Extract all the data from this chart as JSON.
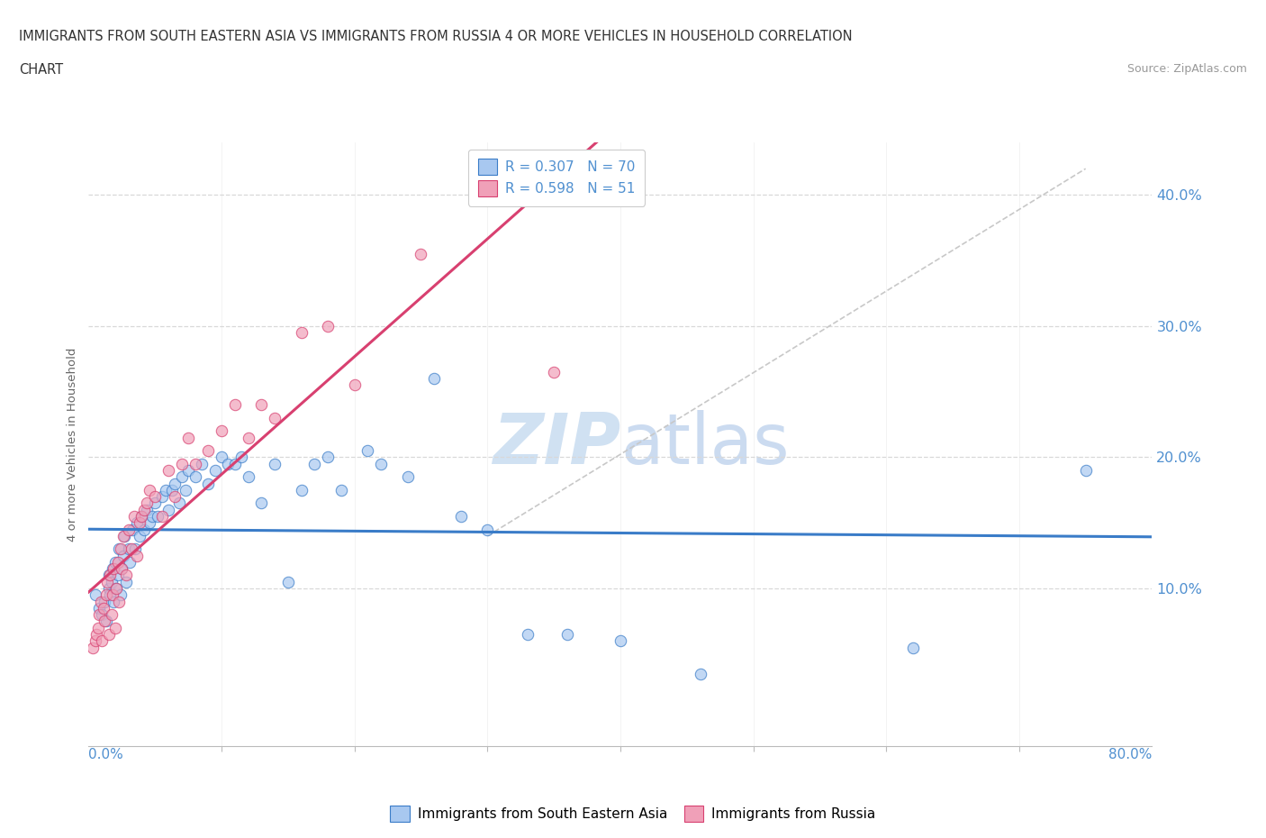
{
  "title_line1": "IMMIGRANTS FROM SOUTH EASTERN ASIA VS IMMIGRANTS FROM RUSSIA 4 OR MORE VEHICLES IN HOUSEHOLD CORRELATION",
  "title_line2": "CHART",
  "source_text": "Source: ZipAtlas.com",
  "ylabel": "4 or more Vehicles in Household",
  "yticks": [
    "10.0%",
    "20.0%",
    "30.0%",
    "40.0%"
  ],
  "ytick_vals": [
    0.1,
    0.2,
    0.3,
    0.4
  ],
  "xlim": [
    0.0,
    0.8
  ],
  "ylim": [
    -0.02,
    0.44
  ],
  "watermark_zip": "ZIP",
  "watermark_atlas": "atlas",
  "legend_blue_label": "R = 0.307   N = 70",
  "legend_pink_label": "R = 0.598   N = 51",
  "blue_color": "#A8C8F0",
  "pink_color": "#F0A0B8",
  "blue_line_color": "#3A7CC8",
  "pink_line_color": "#D84070",
  "diag_line_color": "#C8C8C8",
  "grid_color": "#D8D8D8",
  "label_color": "#5090D0",
  "blue_scatter_x": [
    0.005,
    0.008,
    0.01,
    0.012,
    0.013,
    0.015,
    0.015,
    0.016,
    0.017,
    0.018,
    0.019,
    0.02,
    0.021,
    0.022,
    0.023,
    0.024,
    0.025,
    0.026,
    0.027,
    0.028,
    0.03,
    0.031,
    0.033,
    0.035,
    0.036,
    0.038,
    0.04,
    0.042,
    0.044,
    0.046,
    0.048,
    0.05,
    0.052,
    0.055,
    0.058,
    0.06,
    0.063,
    0.065,
    0.068,
    0.07,
    0.073,
    0.075,
    0.08,
    0.085,
    0.09,
    0.095,
    0.1,
    0.105,
    0.11,
    0.115,
    0.12,
    0.13,
    0.14,
    0.15,
    0.16,
    0.17,
    0.18,
    0.19,
    0.21,
    0.22,
    0.24,
    0.26,
    0.28,
    0.3,
    0.33,
    0.36,
    0.4,
    0.46,
    0.62,
    0.75
  ],
  "blue_scatter_y": [
    0.095,
    0.085,
    0.08,
    0.09,
    0.075,
    0.1,
    0.11,
    0.095,
    0.105,
    0.115,
    0.09,
    0.12,
    0.1,
    0.11,
    0.13,
    0.095,
    0.115,
    0.125,
    0.14,
    0.105,
    0.13,
    0.12,
    0.145,
    0.13,
    0.15,
    0.14,
    0.155,
    0.145,
    0.16,
    0.15,
    0.155,
    0.165,
    0.155,
    0.17,
    0.175,
    0.16,
    0.175,
    0.18,
    0.165,
    0.185,
    0.175,
    0.19,
    0.185,
    0.195,
    0.18,
    0.19,
    0.2,
    0.195,
    0.195,
    0.2,
    0.185,
    0.165,
    0.195,
    0.105,
    0.175,
    0.195,
    0.2,
    0.175,
    0.205,
    0.195,
    0.185,
    0.26,
    0.155,
    0.145,
    0.065,
    0.065,
    0.06,
    0.035,
    0.055,
    0.19
  ],
  "pink_scatter_x": [
    0.003,
    0.005,
    0.006,
    0.007,
    0.008,
    0.009,
    0.01,
    0.011,
    0.012,
    0.013,
    0.014,
    0.015,
    0.016,
    0.017,
    0.018,
    0.019,
    0.02,
    0.021,
    0.022,
    0.023,
    0.024,
    0.025,
    0.026,
    0.028,
    0.03,
    0.032,
    0.034,
    0.036,
    0.038,
    0.04,
    0.042,
    0.044,
    0.046,
    0.05,
    0.055,
    0.06,
    0.065,
    0.07,
    0.075,
    0.08,
    0.09,
    0.1,
    0.11,
    0.12,
    0.13,
    0.14,
    0.16,
    0.18,
    0.2,
    0.25,
    0.35
  ],
  "pink_scatter_y": [
    0.055,
    0.06,
    0.065,
    0.07,
    0.08,
    0.09,
    0.06,
    0.085,
    0.075,
    0.095,
    0.105,
    0.065,
    0.11,
    0.08,
    0.095,
    0.115,
    0.07,
    0.1,
    0.12,
    0.09,
    0.13,
    0.115,
    0.14,
    0.11,
    0.145,
    0.13,
    0.155,
    0.125,
    0.15,
    0.155,
    0.16,
    0.165,
    0.175,
    0.17,
    0.155,
    0.19,
    0.17,
    0.195,
    0.215,
    0.195,
    0.205,
    0.22,
    0.24,
    0.215,
    0.24,
    0.23,
    0.295,
    0.3,
    0.255,
    0.355,
    0.265
  ],
  "legend_label_blue": "Immigrants from South Eastern Asia",
  "legend_label_pink": "Immigrants from Russia"
}
